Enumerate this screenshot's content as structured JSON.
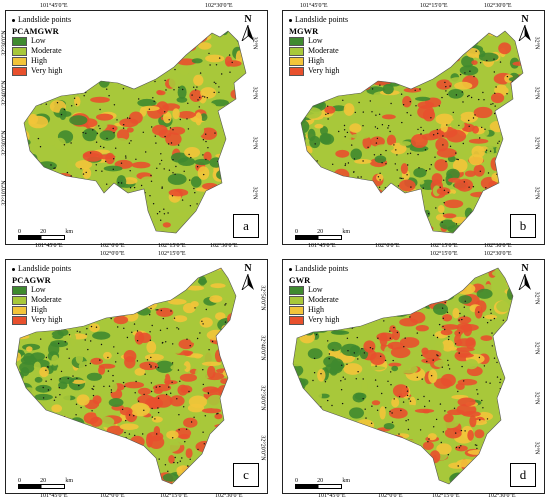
{
  "legend": {
    "points_label": "Landslide points",
    "classes": [
      {
        "name": "Low",
        "color": "#3f8a2f"
      },
      {
        "name": "Moderate",
        "color": "#a8c83a"
      },
      {
        "name": "High",
        "color": "#f2c43a"
      },
      {
        "name": "Very high",
        "color": "#e8502d"
      }
    ]
  },
  "panels": [
    {
      "id": "a",
      "model": "PCAMGWR",
      "letter": "a"
    },
    {
      "id": "b",
      "model": "MGWR",
      "letter": "b"
    },
    {
      "id": "c",
      "model": "PCAGWR",
      "letter": "c"
    },
    {
      "id": "d",
      "model": "GWR",
      "letter": "d"
    }
  ],
  "north_label": "N",
  "scale": {
    "zero": "0",
    "twenty": "20",
    "unit": "km"
  },
  "lon_labels": [
    "101°45'0\"E",
    "102°0'0\"E",
    "102°15'0\"E",
    "102°30'0\"E"
  ],
  "lat_labels_left": [
    "32°30'0\"N",
    "32°40'0\"N",
    "32°30'0\"N",
    "32°20'0\"N",
    "32°10'0\"N",
    "32°0'0\"N"
  ],
  "lat_labels_right": [
    "32°N",
    "32°N",
    "32°N",
    "32°N",
    "32°N"
  ],
  "lat_labels_right_c": [
    "32°50'0\"N",
    "32°40'0\"N",
    "32°30'0\"N",
    "32°20'0\"N",
    "32°10'0\"N",
    "32°0'0\"N"
  ]
}
